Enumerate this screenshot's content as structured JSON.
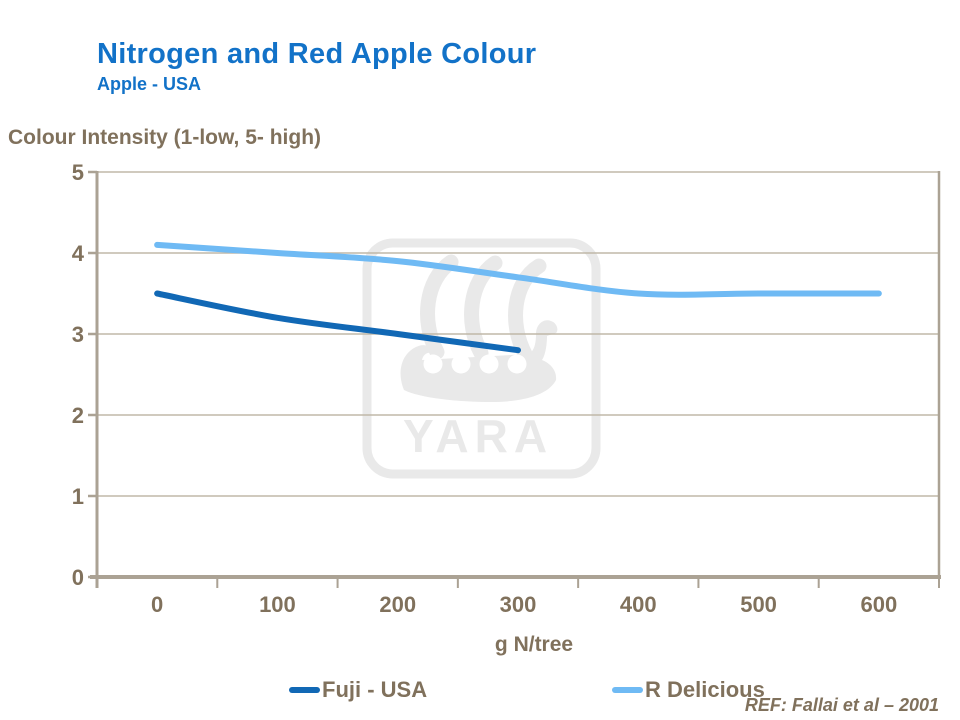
{
  "slide": {
    "title": "Nitrogen and Red Apple Colour",
    "subtitle": "Apple - USA",
    "reference": "REF: Fallai et al – 2001",
    "watermark_text": "YARA"
  },
  "colors": {
    "title_blue": "#1272C8",
    "text_brown": "#80715C",
    "axis_line": "#ABA294",
    "gridline": "#C0B8A8",
    "fuji_line": "#1168B5",
    "rdelicious_line": "#6FBAF4",
    "watermark_gray": "#E9E9E9"
  },
  "chart_data": {
    "type": "line",
    "title": "Nitrogen and Red Apple Colour",
    "subtitle": "Apple - USA",
    "xlabel": "g N/tree",
    "ylabel": "Colour Intensity (1-low, 5- high)",
    "x": [
      0,
      100,
      200,
      300,
      400,
      500,
      600
    ],
    "xticklabels": [
      "0",
      "100",
      "200",
      "300",
      "400",
      "500",
      "600"
    ],
    "yticks": [
      0,
      1,
      2,
      3,
      4,
      5
    ],
    "ylim": [
      0,
      5
    ],
    "grid": true,
    "legend_position": "bottom",
    "series": [
      {
        "name": "Fuji - USA",
        "color": "#1168B5",
        "x": [
          0,
          100,
          200,
          300
        ],
        "values": [
          3.5,
          3.2,
          3.0,
          2.8
        ]
      },
      {
        "name": "R Delicious",
        "color": "#6FBAF4",
        "x": [
          0,
          100,
          200,
          300,
          400,
          500,
          600
        ],
        "values": [
          4.1,
          4.0,
          3.9,
          3.7,
          3.5,
          3.5,
          3.5
        ]
      }
    ]
  }
}
